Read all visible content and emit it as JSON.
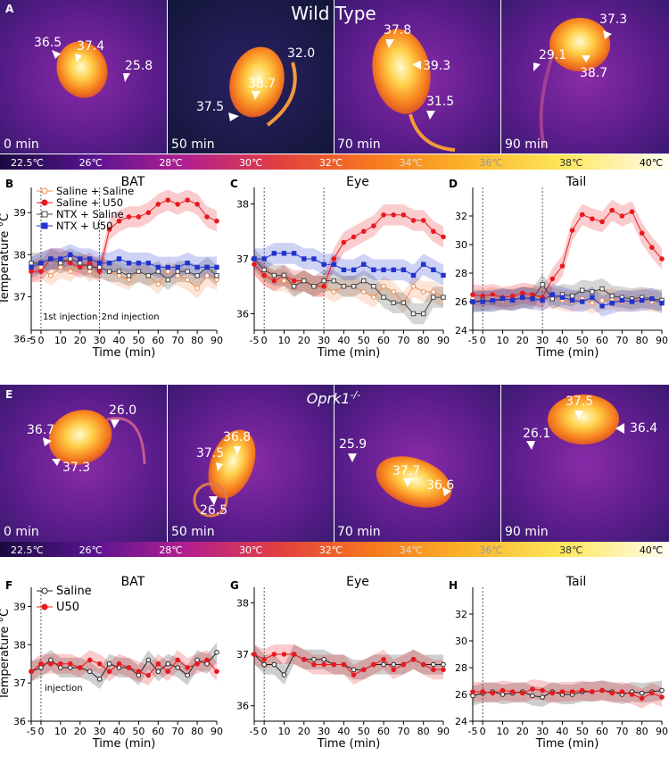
{
  "figure": {
    "wt_title": "Wild Type",
    "ko_title": "Oprk1",
    "ko_superscript": "-/-",
    "panel_labels": [
      "A",
      "B",
      "C",
      "D",
      "E",
      "F",
      "G",
      "H"
    ]
  },
  "colorbar": {
    "ticks": [
      "22.5℃",
      "26℃",
      "28℃",
      "30℃",
      "32℃",
      "34℃",
      "36℃",
      "38℃",
      "40℃"
    ],
    "colors": [
      "#1a0a40",
      "#5a1590",
      "#b3208f",
      "#e2403f",
      "#f77a1f",
      "#fbb52b",
      "#fde65a",
      "#fff7a8",
      "#fffef0"
    ]
  },
  "thermal_wt": [
    {
      "time": "0 min",
      "temps": [
        "36.5",
        "37.4",
        "25.8"
      ]
    },
    {
      "time": "50 min",
      "temps": [
        "32.0",
        "38.7",
        "37.5"
      ]
    },
    {
      "time": "70 min",
      "temps": [
        "37.8",
        "39.3",
        "31.5"
      ]
    },
    {
      "time": "90 min",
      "temps": [
        "37.3",
        "29.1",
        "38.7"
      ]
    }
  ],
  "thermal_ko": [
    {
      "time": "0 min",
      "temps": [
        "36.7",
        "26.0",
        "37.3"
      ]
    },
    {
      "time": "50 min",
      "temps": [
        "37.5",
        "36.8",
        "26.5"
      ]
    },
    {
      "time": "70 min",
      "temps": [
        "25.9",
        "37.7",
        "36.6"
      ]
    },
    {
      "time": "90 min",
      "temps": [
        "37.5",
        "26.1",
        "36.4"
      ]
    }
  ],
  "annotations": {
    "first_injection": "1st injection",
    "second_injection": "2nd injection",
    "injection": "injection"
  },
  "chart_data": [
    {
      "id": "B",
      "type": "line",
      "title": "BAT",
      "xlabel": "Time (min)",
      "ylabel": "Temperature °C",
      "x": [
        -5,
        0,
        5,
        10,
        15,
        20,
        25,
        30,
        35,
        40,
        45,
        50,
        55,
        60,
        65,
        70,
        75,
        80,
        85,
        90
      ],
      "xticks": [
        -5,
        0,
        10,
        20,
        30,
        40,
        50,
        60,
        70,
        80,
        90
      ],
      "ylim": [
        36.2,
        39.6
      ],
      "yticks": [
        36,
        37,
        38,
        39
      ],
      "series": [
        {
          "name": "Saline + Saline",
          "color": "#f08a4b",
          "marker": "circle-open",
          "values": [
            37.6,
            37.7,
            37.5,
            37.7,
            37.6,
            37.8,
            37.6,
            37.7,
            37.6,
            37.5,
            37.4,
            37.6,
            37.5,
            37.3,
            37.6,
            37.5,
            37.4,
            37.2,
            37.5,
            37.4
          ]
        },
        {
          "name": "Saline + U50",
          "color": "#e8191f",
          "marker": "circle",
          "values": [
            37.6,
            37.6,
            37.9,
            37.9,
            37.8,
            37.7,
            37.8,
            37.6,
            38.6,
            38.8,
            38.9,
            38.9,
            39.0,
            39.2,
            39.3,
            39.2,
            39.3,
            39.2,
            38.9,
            38.8
          ]
        },
        {
          "name": "NTX + Saline",
          "color": "#444444",
          "marker": "square-open",
          "values": [
            37.8,
            37.8,
            37.9,
            37.8,
            37.9,
            37.8,
            37.7,
            37.7,
            37.6,
            37.6,
            37.5,
            37.6,
            37.5,
            37.6,
            37.4,
            37.6,
            37.6,
            37.5,
            37.7,
            37.5
          ]
        },
        {
          "name": "NTX + U50",
          "color": "#2233cc",
          "marker": "square",
          "values": [
            37.7,
            37.8,
            37.9,
            37.9,
            38.0,
            37.9,
            37.9,
            37.8,
            37.8,
            37.9,
            37.8,
            37.8,
            37.8,
            37.7,
            37.7,
            37.7,
            37.8,
            37.7,
            37.7,
            37.7
          ]
        }
      ],
      "vlines": [
        0,
        30
      ]
    },
    {
      "id": "C",
      "type": "line",
      "title": "Eye",
      "xlabel": "Time (min)",
      "x": [
        -5,
        0,
        5,
        10,
        15,
        20,
        25,
        30,
        35,
        40,
        45,
        50,
        55,
        60,
        65,
        70,
        75,
        80,
        85,
        90
      ],
      "xticks": [
        -5,
        0,
        10,
        20,
        30,
        40,
        50,
        60,
        70,
        80,
        90
      ],
      "ylim": [
        35.7,
        38.3
      ],
      "yticks": [
        36,
        37,
        38
      ],
      "series": [
        {
          "name": "Saline + Saline",
          "color": "#f08a4b",
          "marker": "circle-open",
          "values": [
            36.9,
            36.7,
            36.6,
            36.6,
            36.5,
            36.6,
            36.5,
            36.5,
            36.4,
            36.5,
            36.5,
            36.4,
            36.3,
            36.5,
            36.4,
            36.2,
            36.5,
            36.4,
            36.4,
            36.3
          ]
        },
        {
          "name": "Saline + U50",
          "color": "#e8191f",
          "marker": "circle",
          "values": [
            36.9,
            36.7,
            36.6,
            36.7,
            36.6,
            36.6,
            36.5,
            36.5,
            37.0,
            37.3,
            37.4,
            37.5,
            37.6,
            37.8,
            37.8,
            37.8,
            37.7,
            37.7,
            37.5,
            37.4
          ]
        },
        {
          "name": "NTX + Saline",
          "color": "#444444",
          "marker": "square-open",
          "values": [
            37.0,
            36.8,
            36.7,
            36.7,
            36.5,
            36.6,
            36.5,
            36.6,
            36.6,
            36.5,
            36.5,
            36.6,
            36.5,
            36.3,
            36.2,
            36.2,
            36.0,
            36.0,
            36.3,
            36.3
          ]
        },
        {
          "name": "NTX + U50",
          "color": "#2233cc",
          "marker": "square",
          "values": [
            37.0,
            37.0,
            37.1,
            37.1,
            37.1,
            37.0,
            37.0,
            36.9,
            36.9,
            36.8,
            36.8,
            36.9,
            36.8,
            36.8,
            36.8,
            36.8,
            36.7,
            36.9,
            36.8,
            36.7
          ]
        }
      ],
      "vlines": [
        0,
        30
      ]
    },
    {
      "id": "D",
      "type": "line",
      "title": "Tail",
      "xlabel": "Time (min)",
      "x": [
        -5,
        0,
        5,
        10,
        15,
        20,
        25,
        30,
        35,
        40,
        45,
        50,
        55,
        60,
        65,
        70,
        75,
        80,
        85,
        90
      ],
      "xticks": [
        -5,
        0,
        10,
        20,
        30,
        40,
        50,
        60,
        70,
        80,
        90
      ],
      "ylim": [
        24,
        34
      ],
      "yticks": [
        24,
        26,
        28,
        30,
        32
      ],
      "series": [
        {
          "name": "Saline + Saline",
          "color": "#f08a4b",
          "marker": "circle-open",
          "values": [
            26.2,
            26.1,
            26.3,
            26.1,
            26.2,
            26.3,
            26.4,
            26.2,
            26.3,
            26.1,
            26.0,
            26.2,
            25.9,
            26.1,
            26.2,
            26.0,
            26.1,
            26.2,
            26.0,
            26.1
          ]
        },
        {
          "name": "Saline + U50",
          "color": "#e8191f",
          "marker": "circle",
          "values": [
            26.5,
            26.4,
            26.5,
            26.3,
            26.4,
            26.6,
            26.5,
            26.3,
            27.6,
            28.5,
            31.0,
            32.1,
            31.8,
            31.6,
            32.4,
            32.0,
            32.3,
            30.8,
            29.8,
            29.0
          ]
        },
        {
          "name": "NTX + Saline",
          "color": "#444444",
          "marker": "square-open",
          "values": [
            26.0,
            26.1,
            26.0,
            26.2,
            26.1,
            26.3,
            26.2,
            27.2,
            26.2,
            26.5,
            26.4,
            26.8,
            26.7,
            26.9,
            26.4,
            26.3,
            26.2,
            26.3,
            26.2,
            26.1
          ]
        },
        {
          "name": "NTX + U50",
          "color": "#2233cc",
          "marker": "square",
          "values": [
            26.0,
            26.0,
            26.1,
            26.2,
            26.1,
            26.3,
            26.2,
            26.1,
            26.5,
            26.3,
            26.1,
            26.0,
            26.3,
            25.7,
            25.9,
            26.1,
            26.0,
            26.1,
            26.2,
            25.9
          ]
        }
      ],
      "vlines": [
        0,
        30
      ]
    },
    {
      "id": "F",
      "type": "line",
      "title": "BAT",
      "xlabel": "Time (min)",
      "ylabel": "Temperature °C",
      "x": [
        -5,
        0,
        5,
        10,
        15,
        20,
        25,
        30,
        35,
        40,
        45,
        50,
        55,
        60,
        65,
        70,
        75,
        80,
        85,
        90
      ],
      "xticks": [
        -5,
        0,
        10,
        20,
        30,
        40,
        50,
        60,
        70,
        80,
        90
      ],
      "ylim": [
        36,
        39.5
      ],
      "yticks": [
        36,
        37,
        38,
        39
      ],
      "series": [
        {
          "name": "Saline",
          "color": "#222222",
          "marker": "circle-open",
          "values": [
            37.3,
            37.4,
            37.6,
            37.4,
            37.4,
            37.4,
            37.3,
            37.1,
            37.5,
            37.4,
            37.4,
            37.2,
            37.6,
            37.3,
            37.5,
            37.4,
            37.2,
            37.6,
            37.5,
            37.8
          ]
        },
        {
          "name": "U50",
          "color": "#e8191f",
          "marker": "circle",
          "values": [
            37.3,
            37.5,
            37.5,
            37.5,
            37.5,
            37.4,
            37.6,
            37.5,
            37.3,
            37.5,
            37.4,
            37.3,
            37.2,
            37.5,
            37.3,
            37.6,
            37.4,
            37.5,
            37.6,
            37.3
          ]
        }
      ],
      "vlines": [
        0
      ]
    },
    {
      "id": "G",
      "type": "line",
      "title": "Eye",
      "xlabel": "Time (min)",
      "x": [
        -5,
        0,
        5,
        10,
        15,
        20,
        25,
        30,
        35,
        40,
        45,
        50,
        55,
        60,
        65,
        70,
        75,
        80,
        85,
        90
      ],
      "xticks": [
        -5,
        0,
        10,
        20,
        30,
        40,
        50,
        60,
        70,
        80,
        90
      ],
      "ylim": [
        35.7,
        38.3
      ],
      "yticks": [
        36,
        37,
        38
      ],
      "series": [
        {
          "name": "Saline",
          "color": "#222222",
          "marker": "circle-open",
          "values": [
            37.0,
            36.8,
            36.8,
            36.6,
            37.0,
            36.9,
            36.9,
            36.9,
            36.8,
            36.8,
            36.7,
            36.7,
            36.8,
            36.8,
            36.8,
            36.8,
            36.9,
            36.8,
            36.8,
            36.8
          ]
        },
        {
          "name": "U50",
          "color": "#e8191f",
          "marker": "circle",
          "values": [
            37.0,
            36.9,
            37.0,
            37.0,
            37.0,
            36.9,
            36.8,
            36.8,
            36.8,
            36.8,
            36.6,
            36.7,
            36.8,
            36.9,
            36.7,
            36.8,
            36.9,
            36.8,
            36.7,
            36.7
          ]
        }
      ],
      "vlines": [
        0
      ]
    },
    {
      "id": "H",
      "type": "line",
      "title": "Tail",
      "xlabel": "Time (min)",
      "x": [
        -5,
        0,
        5,
        10,
        15,
        20,
        25,
        30,
        35,
        40,
        45,
        50,
        55,
        60,
        65,
        70,
        75,
        80,
        85,
        90
      ],
      "xticks": [
        -5,
        0,
        10,
        20,
        30,
        40,
        50,
        60,
        70,
        80,
        90
      ],
      "ylim": [
        24,
        34
      ],
      "yticks": [
        24,
        26,
        28,
        30,
        32
      ],
      "series": [
        {
          "name": "Saline",
          "color": "#222222",
          "marker": "circle-open",
          "values": [
            25.9,
            26.1,
            26.2,
            26.0,
            26.1,
            26.2,
            25.9,
            25.8,
            26.2,
            26.0,
            26.0,
            26.2,
            26.2,
            26.3,
            26.2,
            26.0,
            26.2,
            26.1,
            26.2,
            26.3
          ]
        },
        {
          "name": "U50",
          "color": "#e8191f",
          "marker": "circle",
          "values": [
            26.2,
            26.2,
            26.1,
            26.3,
            26.2,
            26.1,
            26.4,
            26.3,
            26.1,
            26.2,
            26.2,
            26.3,
            26.2,
            26.3,
            26.1,
            26.2,
            26.0,
            25.7,
            26.1,
            25.8
          ]
        }
      ],
      "vlines": [
        0
      ]
    }
  ]
}
